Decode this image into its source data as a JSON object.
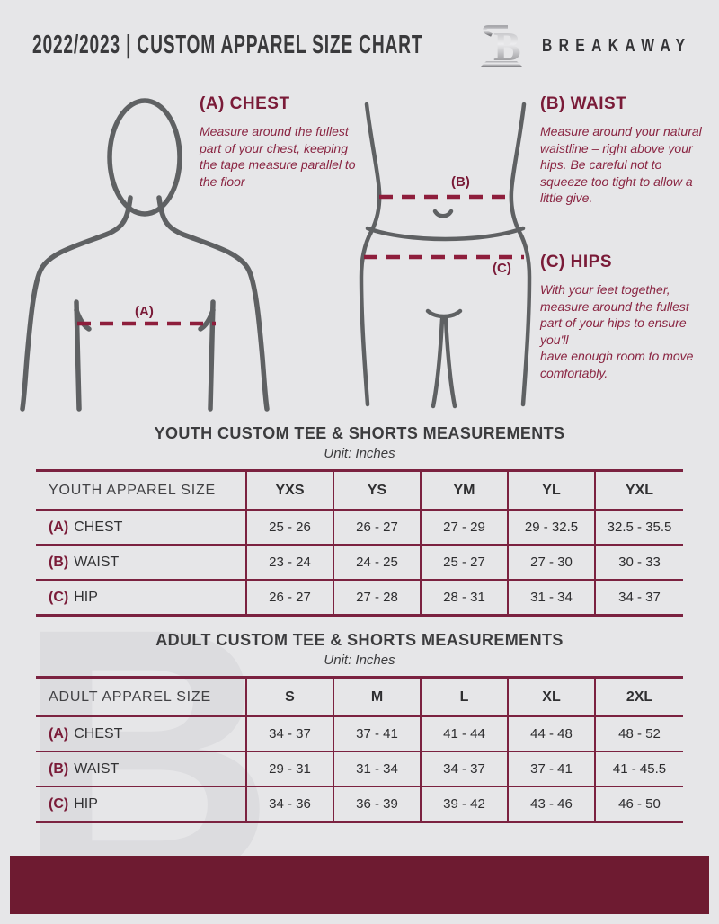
{
  "header": {
    "title": "2022/2023  |  CUSTOM APPAREL SIZE CHART",
    "brand": "BREAKAWAY",
    "logo_letter": "B"
  },
  "watermark_letter": "B",
  "measure_guide": {
    "markers": {
      "a": "(A)",
      "b": "(B)",
      "c": "(C)"
    },
    "chest": {
      "label": "(A) CHEST",
      "text": "Measure around the fullest part of your chest, keeping the tape measure parallel to the floor"
    },
    "waist": {
      "label": "(B) WAIST",
      "text": "Measure around your natural waistline – right above your hips. Be careful not to squeeze too tight to allow a little give."
    },
    "hips": {
      "label": "(C) HIPS",
      "text": "With your feet together, measure around the fullest part of your hips to ensure you'll\nhave enough room to move comfortably."
    }
  },
  "youth_table": {
    "title": "YOUTH CUSTOM TEE & SHORTS MEASUREMENTS",
    "unit": "Unit: Inches",
    "header": [
      "YOUTH APPAREL SIZE",
      "YXS",
      "YS",
      "YM",
      "YL",
      "YXL"
    ],
    "rows": [
      {
        "prefix": "(A)",
        "label": "CHEST",
        "values": [
          "25 - 26",
          "26 - 27",
          "27 - 29",
          "29 - 32.5",
          "32.5 - 35.5"
        ]
      },
      {
        "prefix": "(B)",
        "label": "WAIST",
        "values": [
          "23 - 24",
          "24 - 25",
          "25 - 27",
          "27 - 30",
          "30 - 33"
        ]
      },
      {
        "prefix": "(C)",
        "label": "HIP",
        "values": [
          "26 - 27",
          "27 - 28",
          "28 - 31",
          "31 - 34",
          "34 - 37"
        ]
      }
    ]
  },
  "adult_table": {
    "title": "ADULT CUSTOM TEE & SHORTS MEASUREMENTS",
    "unit": "Unit: Inches",
    "header": [
      "ADULT APPAREL SIZE",
      "S",
      "M",
      "L",
      "XL",
      "2XL"
    ],
    "rows": [
      {
        "prefix": "(A)",
        "label": "CHEST",
        "values": [
          "34 - 37",
          "37 - 41",
          "41 - 44",
          "44 - 48",
          "48 - 52"
        ]
      },
      {
        "prefix": "(B)",
        "label": "WAIST",
        "values": [
          "29 - 31",
          "31 - 34",
          "34 - 37",
          "37 - 41",
          "41 - 45.5"
        ]
      },
      {
        "prefix": "(C)",
        "label": "HIP",
        "values": [
          "34 - 36",
          "36 - 39",
          "39 - 42",
          "43 - 46",
          "46 - 50"
        ]
      }
    ]
  },
  "colors": {
    "background": "#e6e6e8",
    "maroon_heading": "#7a1b38",
    "maroon_body": "#8a2542",
    "maroon_line": "#7b2240",
    "maroon_dash": "#8e1e3c",
    "bottom_bar": "#6e1b31",
    "text_dark": "#3a3a3c",
    "figure_gray": "#5f6163",
    "watermark": "#dcdcdf"
  }
}
